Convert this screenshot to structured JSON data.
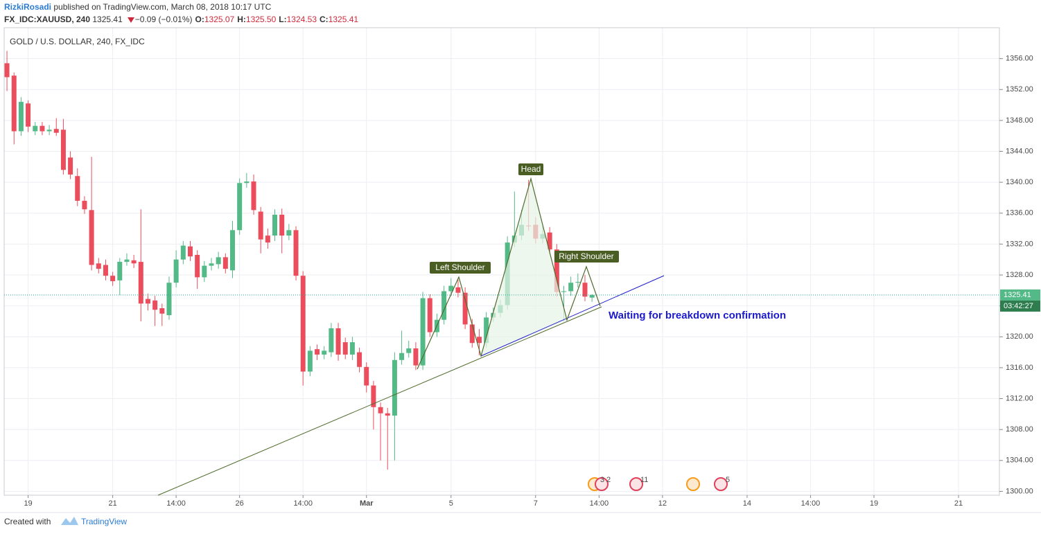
{
  "header": {
    "author": "RizkiRosadi",
    "published": "published on TradingView.com, March 08, 2018 10:17 UTC",
    "symbol": "FX_IDC:XAUUSD, 240",
    "last": "1325.41",
    "change": "−0.09 (−0.01%)",
    "ohlc": [
      {
        "label": "O:",
        "value": "1325.07"
      },
      {
        "label": "H:",
        "value": "1325.50"
      },
      {
        "label": "L:",
        "value": "1324.53"
      },
      {
        "label": "C:",
        "value": "1325.41"
      }
    ]
  },
  "chart_data": {
    "type": "candlestick",
    "title": "GOLD / U.S. DOLLAR, 240, FX_IDC",
    "up_color": "#53b987",
    "down_color": "#eb4d5c",
    "grid": true,
    "open": [
      1355.4,
      1353.8,
      1346.6,
      1350.2,
      1346.6,
      1347.3,
      1346.6,
      1346.9,
      1346.8,
      1343.2,
      1340.8,
      1337.6,
      1336.4,
      1329.5,
      1329.3,
      1327.9,
      1327.3,
      1329.7,
      1329.9,
      1329.7,
      1324.9,
      1324.7,
      1323.7,
      1322.8,
      1327.0,
      1330.0,
      1331.7,
      1330.6,
      1327.7,
      1329.2,
      1329.4,
      1330.3,
      1328.6,
      1333.8,
      1339.9,
      1340.1,
      1336.2,
      1333.1,
      1333.1,
      1335.8,
      1333.1,
      1333.8,
      1327.9,
      1315.5,
      1318.4,
      1317.7,
      1318.0,
      1321.1,
      1319.3,
      1317.7,
      1318.0,
      1316.1,
      1313.7,
      1310.9,
      1310.1,
      1309.8,
      1317.0,
      1317.9,
      1318.5,
      1316.3,
      1325.0,
      1320.6,
      1322.2,
      1325.9,
      1326.4,
      1325.7,
      1321.6,
      1320.0,
      1319.2,
      1322.5,
      1323.1,
      1324.1,
      1332.2,
      1333.1,
      1334.4,
      1334.5,
      1332.7,
      1333.5,
      1331.3,
      1325.8,
      1325.9,
      1327.0,
      1327.0,
      1325.07
    ],
    "high": [
      1357.0,
      1354.2,
      1351.0,
      1350.6,
      1347.8,
      1347.8,
      1347.4,
      1348.3,
      1348.2,
      1344.0,
      1341.8,
      1338.2,
      1343.3,
      1330.2,
      1330.0,
      1328.4,
      1330.2,
      1330.8,
      1330.6,
      1336.5,
      1325.6,
      1325.3,
      1324.3,
      1327.8,
      1331.2,
      1332.4,
      1332.4,
      1331.2,
      1329.8,
      1330.2,
      1331.0,
      1330.8,
      1335.0,
      1340.5,
      1341.2,
      1341.0,
      1336.8,
      1334.0,
      1336.5,
      1336.6,
      1334.6,
      1334.3,
      1328.5,
      1318.8,
      1319.0,
      1318.8,
      1321.8,
      1321.8,
      1319.9,
      1320.0,
      1318.6,
      1316.7,
      1314.3,
      1311.5,
      1310.8,
      1318.0,
      1320.8,
      1319.5,
      1319.3,
      1325.8,
      1325.5,
      1323.0,
      1326.6,
      1327.6,
      1327.4,
      1326.4,
      1322.3,
      1321.0,
      1323.2,
      1323.8,
      1324.8,
      1333.0,
      1338.8,
      1336.4,
      1340.3,
      1335.5,
      1334.3,
      1334.2,
      1332.0,
      1326.6,
      1327.8,
      1328.2,
      1328.0,
      1325.5
    ],
    "low": [
      1351.8,
      1344.9,
      1346.0,
      1346.5,
      1346.1,
      1346.1,
      1346.1,
      1346.0,
      1341.0,
      1340.4,
      1336.9,
      1335.9,
      1328.6,
      1328.2,
      1327.3,
      1326.6,
      1325.4,
      1329.2,
      1328.9,
      1322.0,
      1323.4,
      1321.4,
      1321.4,
      1322.2,
      1326.4,
      1329.4,
      1329.8,
      1326.2,
      1327.1,
      1328.6,
      1328.8,
      1328.2,
      1327.6,
      1333.2,
      1339.3,
      1335.8,
      1330.8,
      1331.4,
      1332.4,
      1330.8,
      1332.5,
      1327.3,
      1313.7,
      1314.9,
      1317.0,
      1317.1,
      1317.4,
      1316.9,
      1317.1,
      1317.0,
      1315.4,
      1312.8,
      1308.0,
      1304.0,
      1302.8,
      1304.0,
      1316.4,
      1317.3,
      1315.7,
      1315.7,
      1320.0,
      1320.0,
      1321.6,
      1325.3,
      1325.1,
      1321.0,
      1318.6,
      1317.6,
      1318.6,
      1321.9,
      1322.5,
      1323.5,
      1331.6,
      1332.5,
      1333.7,
      1332.1,
      1332.1,
      1330.7,
      1325.2,
      1322.0,
      1325.3,
      1326.4,
      1324.6,
      1324.53
    ],
    "close": [
      1353.6,
      1346.6,
      1350.4,
      1347.2,
      1347.3,
      1346.6,
      1346.8,
      1346.4,
      1341.6,
      1341.0,
      1337.6,
      1336.5,
      1329.3,
      1328.8,
      1327.9,
      1327.2,
      1329.7,
      1330.0,
      1329.5,
      1324.3,
      1324.3,
      1323.5,
      1323.0,
      1327.0,
      1330.0,
      1331.8,
      1330.4,
      1327.7,
      1329.2,
      1329.5,
      1330.3,
      1328.8,
      1333.8,
      1339.9,
      1340.1,
      1336.4,
      1332.6,
      1332.2,
      1335.8,
      1333.1,
      1333.8,
      1327.9,
      1315.5,
      1318.2,
      1317.7,
      1318.2,
      1321.1,
      1317.7,
      1317.7,
      1319.3,
      1316.1,
      1313.7,
      1310.9,
      1310.1,
      1309.8,
      1317.0,
      1317.9,
      1318.5,
      1316.3,
      1325.0,
      1320.6,
      1322.2,
      1325.9,
      1326.6,
      1325.7,
      1321.6,
      1319.2,
      1319.2,
      1322.5,
      1323.1,
      1324.1,
      1332.2,
      1333.1,
      1334.5,
      1334.3,
      1332.7,
      1333.3,
      1331.3,
      1325.8,
      1325.9,
      1327.0,
      1327.1,
      1325.2,
      1325.41
    ],
    "xlim": [
      -0.4,
      140.8
    ],
    "xticks": [
      {
        "value": 3,
        "label": "19"
      },
      {
        "value": 15,
        "label": "21"
      },
      {
        "value": 24,
        "label": "14:00"
      },
      {
        "value": 33,
        "label": "26"
      },
      {
        "value": 42,
        "label": "14:00"
      },
      {
        "value": 51,
        "label": "Mar"
      },
      {
        "value": 63,
        "label": "5"
      },
      {
        "value": 75,
        "label": "7"
      },
      {
        "value": 84,
        "label": "14:00"
      },
      {
        "value": 93,
        "label": "12"
      },
      {
        "value": 105,
        "label": "14"
      },
      {
        "value": 114,
        "label": "14:00"
      },
      {
        "value": 123,
        "label": "19"
      },
      {
        "value": 135,
        "label": "21"
      }
    ],
    "ylim": [
      1299.5,
      1360.0
    ],
    "yticks": [
      {
        "value": 1300,
        "label": "1300.00"
      },
      {
        "value": 1304,
        "label": "1304.00"
      },
      {
        "value": 1308,
        "label": "1308.00"
      },
      {
        "value": 1312,
        "label": "1312.00"
      },
      {
        "value": 1316,
        "label": "1316.00"
      },
      {
        "value": 1320,
        "label": "1320.00"
      },
      {
        "value": 1324,
        "label": "1324.00"
      },
      {
        "value": 1328,
        "label": "1328.00"
      },
      {
        "value": 1332,
        "label": "1332.00"
      },
      {
        "value": 1336,
        "label": "1336.00"
      },
      {
        "value": 1340,
        "label": "1340.00"
      },
      {
        "value": 1344,
        "label": "1344.00"
      },
      {
        "value": 1348,
        "label": "1348.00"
      },
      {
        "value": 1352,
        "label": "1352.00"
      },
      {
        "value": 1356,
        "label": "1356.00"
      }
    ],
    "last_price": {
      "value": 1325.41,
      "label": "1325.41"
    },
    "timer": "03:42:27",
    "annotations": {
      "head": "Head",
      "left_shoulder": "Left Shoulder",
      "right_shoulder": "Right Shoulder",
      "note": "Waiting for breakdown confirmation"
    },
    "events": [
      "3",
      "2",
      "11",
      "5"
    ]
  },
  "footer": {
    "created_with": "Created with",
    "brand": "TradingView"
  }
}
